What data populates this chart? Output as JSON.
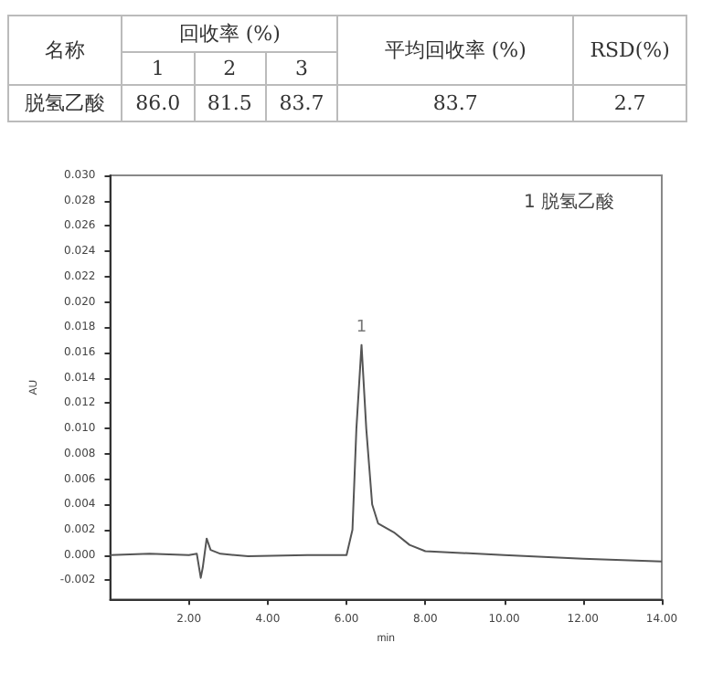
{
  "chart_data": [
    {
      "type": "other",
      "annotations": [
        "名称",
        "回收率 (%)",
        "平均回收率 (%)",
        "RSD(%)",
        "1",
        "2",
        "3",
        "脱氢乙酸",
        "86.0",
        "81.5",
        "83.7",
        "83.7",
        "2.7"
      ]
    },
    {
      "type": "line",
      "xlabel": "min",
      "ylabel": "AU",
      "x": [
        0,
        1,
        2,
        2.2,
        2.3,
        2.35,
        2.45,
        2.55,
        2.8,
        3.5,
        5,
        6,
        6.15,
        6.25,
        6.38,
        6.5,
        6.65,
        6.8,
        7.2,
        7.6,
        8,
        10,
        12,
        14
      ],
      "series": [
        {
          "color": "#555555",
          "values": [
            0,
            0.0001,
            0,
            0.0001,
            -0.0018,
            -0.001,
            0.0013,
            0.0004,
            0.0001,
            -0.0001,
            0,
            0,
            0.002,
            0.01,
            0.0166,
            0.01,
            0.004,
            0.0025,
            0.0018,
            0.0008,
            0.0003,
            0,
            -0.0003,
            -0.0005
          ]
        }
      ],
      "xlim": [
        0,
        14
      ],
      "xticks": [
        {
          "value": 2,
          "label": "2.00"
        },
        {
          "value": 4,
          "label": "4.00"
        },
        {
          "value": 6,
          "label": "6.00"
        },
        {
          "value": 8,
          "label": "8.00"
        },
        {
          "value": 10,
          "label": "10.00"
        },
        {
          "value": 12,
          "label": "12.00"
        },
        {
          "value": 14,
          "label": "14.00"
        }
      ],
      "ylim": [
        -0.0035,
        0.03
      ],
      "yticks": [
        {
          "value": -0.002,
          "label": "-0.002"
        },
        {
          "value": 0,
          "label": "0.000"
        },
        {
          "value": 0.002,
          "label": "0.002"
        },
        {
          "value": 0.004,
          "label": "0.004"
        },
        {
          "value": 0.006,
          "label": "0.006"
        },
        {
          "value": 0.008,
          "label": "0.008"
        },
        {
          "value": 0.01,
          "label": "0.010"
        },
        {
          "value": 0.012,
          "label": "0.012"
        },
        {
          "value": 0.014,
          "label": "0.014"
        },
        {
          "value": 0.016,
          "label": "0.016"
        },
        {
          "value": 0.018,
          "label": "0.018"
        },
        {
          "value": 0.02,
          "label": "0.020"
        },
        {
          "value": 0.022,
          "label": "0.022"
        },
        {
          "value": 0.024,
          "label": "0.024"
        },
        {
          "value": 0.026,
          "label": "0.026"
        },
        {
          "value": 0.028,
          "label": "0.028"
        },
        {
          "value": 0.03,
          "label": "0.030"
        }
      ],
      "annotations": [
        "1 脱氢乙酸",
        {
          "text": "1",
          "x": 6.38,
          "y": 0.0166
        }
      ],
      "marker": "none",
      "line_style": "solid"
    }
  ]
}
